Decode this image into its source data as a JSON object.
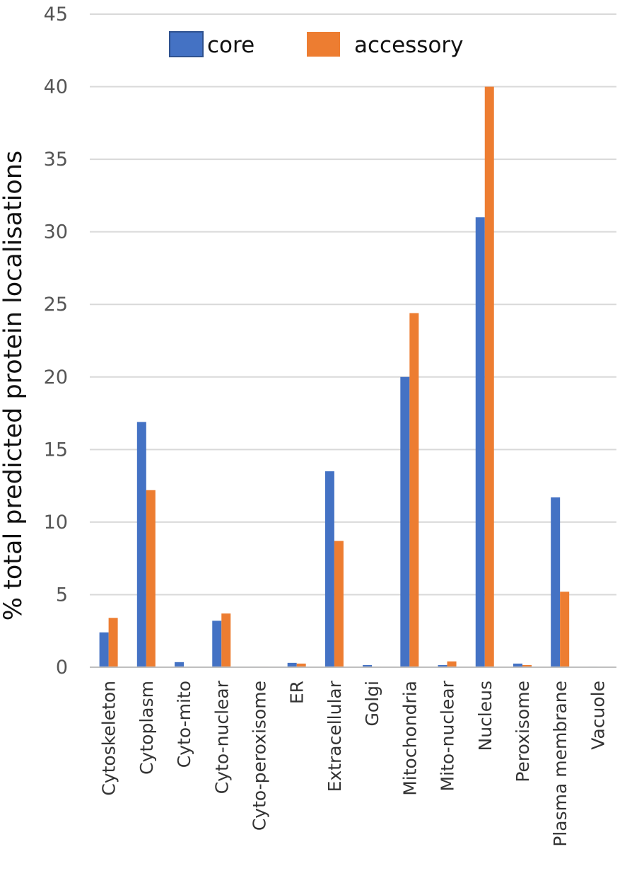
{
  "chart_data": {
    "type": "bar",
    "title": "",
    "xlabel": "",
    "ylabel": "% total predicted protein localisations",
    "ylim": [
      0,
      45
    ],
    "yticks": [
      0,
      5,
      10,
      15,
      20,
      25,
      30,
      35,
      40,
      45
    ],
    "grid": true,
    "legend_position": "top",
    "categories": [
      "Cytoskeleton",
      "Cytoplasm",
      "Cyto-mito",
      "Cyto-nuclear",
      "Cyto-peroxisome",
      "ER",
      "Extracellular",
      "Golgi",
      "Mitochondria",
      "Mito-nuclear",
      "Nucleus",
      "Peroxisome",
      "Plasma membrane",
      "Vacuole"
    ],
    "series": [
      {
        "name": "core",
        "color": "#4472c4",
        "values": [
          2.4,
          16.9,
          0.35,
          3.2,
          0.05,
          0.3,
          13.5,
          0.15,
          20.0,
          0.15,
          31.0,
          0.25,
          11.7,
          0.05
        ]
      },
      {
        "name": "accessory",
        "color": "#ed7d31",
        "values": [
          3.4,
          12.2,
          0.0,
          3.7,
          0.05,
          0.25,
          8.7,
          0.05,
          24.4,
          0.4,
          40.0,
          0.15,
          5.2,
          0.0
        ]
      }
    ]
  }
}
